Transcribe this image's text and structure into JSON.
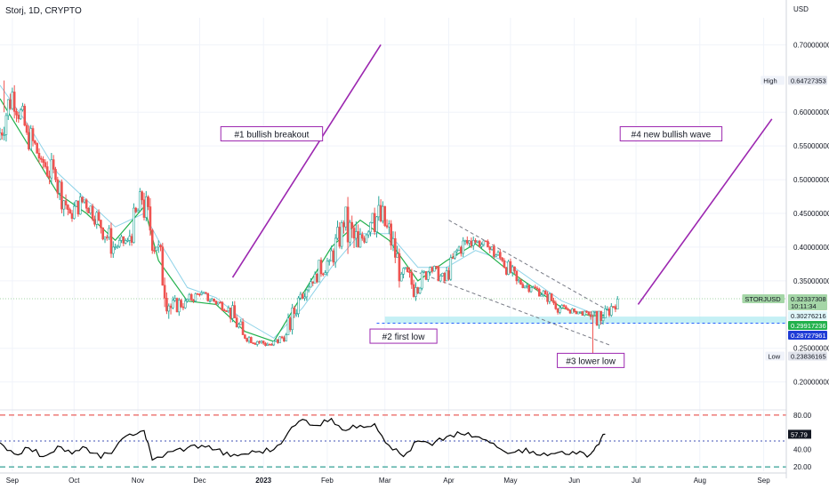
{
  "chart_data": {
    "type": "candlestick",
    "title": "Storj, 1D, CRYPTO",
    "currency": "USD",
    "symbol": "STORJUSD",
    "colors": {
      "up": "#26a69a",
      "up_fill": "#ffffff",
      "down": "#ef5350",
      "ema_fast": "#22b14c",
      "ema_slow": "#8fd3e8",
      "annotation": "#9c27b0",
      "support_zone": "#b2ebf2",
      "rsi_line": "#000000",
      "rsi_upper": "#e53935",
      "rsi_mid": "#3f51b5",
      "rsi_lower": "#00897b"
    },
    "x_axis": {
      "labels": [
        {
          "date": "2022-09-01",
          "label": "Sep"
        },
        {
          "date": "2022-10-01",
          "label": "Oct"
        },
        {
          "date": "2022-11-01",
          "label": "Nov"
        },
        {
          "date": "2022-12-01",
          "label": "Dec"
        },
        {
          "date": "2023-01-01",
          "label": "2023"
        },
        {
          "date": "2023-02-01",
          "label": "Feb"
        },
        {
          "date": "2023-03-01",
          "label": "Mar"
        },
        {
          "date": "2023-04-01",
          "label": "Apr"
        },
        {
          "date": "2023-05-01",
          "label": "May"
        },
        {
          "date": "2023-06-01",
          "label": "Jun"
        },
        {
          "date": "2023-07-01",
          "label": "Jul"
        },
        {
          "date": "2023-08-01",
          "label": "Aug"
        },
        {
          "date": "2023-09-01",
          "label": "Sep"
        }
      ],
      "range": [
        "2022-08-26",
        "2023-09-12"
      ]
    },
    "price_axis": {
      "range": [
        0.16,
        0.74
      ],
      "ticks": [
        {
          "value": 0.7,
          "label": "0.70000000"
        },
        {
          "value": 0.6,
          "label": "0.60000000"
        },
        {
          "value": 0.55,
          "label": "0.55000000"
        },
        {
          "value": 0.5,
          "label": "0.50000000"
        },
        {
          "value": 0.45,
          "label": "0.45000000"
        },
        {
          "value": 0.4,
          "label": "0.40000000"
        },
        {
          "value": 0.35,
          "label": "0.35000000"
        },
        {
          "value": 0.25,
          "label": "0.25000000"
        },
        {
          "value": 0.2,
          "label": "0.20000000"
        }
      ],
      "markers": [
        {
          "name": "High",
          "label": "High",
          "value": 0.64727353,
          "text": "0.64727353",
          "style": "plain"
        },
        {
          "name": "STORJUSD",
          "label": "STORJUSD",
          "value": 0.32337308,
          "text": "0.32337308",
          "subtext": "10:11:34",
          "style": "green-light"
        },
        {
          "name": "ema-slow",
          "label": "",
          "value": 0.30276216,
          "text": "0.30276216",
          "style": "light"
        },
        {
          "name": "ema-fast",
          "label": "",
          "value": 0.29917236,
          "text": "0.29917236",
          "style": "green"
        },
        {
          "name": "support",
          "label": "",
          "value": 0.28727961,
          "text": "0.28727961",
          "style": "blue"
        },
        {
          "name": "Low",
          "label": "Low",
          "value": 0.23836165,
          "text": "0.23836165",
          "style": "plain"
        }
      ]
    },
    "ohlc_weekly": [
      {
        "date": "2022-08-26",
        "open": 0.56,
        "high": 0.65,
        "low": 0.54,
        "close": 0.63
      },
      {
        "date": "2022-09-02",
        "open": 0.63,
        "high": 0.64,
        "low": 0.55,
        "close": 0.57
      },
      {
        "date": "2022-09-09",
        "open": 0.57,
        "high": 0.6,
        "low": 0.51,
        "close": 0.53
      },
      {
        "date": "2022-09-16",
        "open": 0.53,
        "high": 0.56,
        "low": 0.47,
        "close": 0.5
      },
      {
        "date": "2022-09-23",
        "open": 0.5,
        "high": 0.52,
        "low": 0.43,
        "close": 0.45
      },
      {
        "date": "2022-09-30",
        "open": 0.45,
        "high": 0.49,
        "low": 0.43,
        "close": 0.47
      },
      {
        "date": "2022-10-07",
        "open": 0.47,
        "high": 0.48,
        "low": 0.42,
        "close": 0.44
      },
      {
        "date": "2022-10-14",
        "open": 0.44,
        "high": 0.46,
        "low": 0.38,
        "close": 0.4
      },
      {
        "date": "2022-10-21",
        "open": 0.4,
        "high": 0.42,
        "low": 0.38,
        "close": 0.41
      },
      {
        "date": "2022-10-28",
        "open": 0.41,
        "high": 0.49,
        "low": 0.4,
        "close": 0.47
      },
      {
        "date": "2022-11-04",
        "open": 0.47,
        "high": 0.51,
        "low": 0.39,
        "close": 0.4
      },
      {
        "date": "2022-11-11",
        "open": 0.4,
        "high": 0.41,
        "low": 0.28,
        "close": 0.31
      },
      {
        "date": "2022-11-18",
        "open": 0.31,
        "high": 0.34,
        "low": 0.29,
        "close": 0.32
      },
      {
        "date": "2022-11-25",
        "open": 0.32,
        "high": 0.34,
        "low": 0.31,
        "close": 0.33
      },
      {
        "date": "2022-12-02",
        "open": 0.33,
        "high": 0.34,
        "low": 0.31,
        "close": 0.32
      },
      {
        "date": "2022-12-09",
        "open": 0.32,
        "high": 0.33,
        "low": 0.3,
        "close": 0.31
      },
      {
        "date": "2022-12-16",
        "open": 0.31,
        "high": 0.32,
        "low": 0.26,
        "close": 0.27
      },
      {
        "date": "2022-12-23",
        "open": 0.27,
        "high": 0.28,
        "low": 0.25,
        "close": 0.26
      },
      {
        "date": "2022-12-30",
        "open": 0.26,
        "high": 0.27,
        "low": 0.245,
        "close": 0.255
      },
      {
        "date": "2023-01-06",
        "open": 0.255,
        "high": 0.28,
        "low": 0.25,
        "close": 0.27
      },
      {
        "date": "2023-01-13",
        "open": 0.27,
        "high": 0.34,
        "low": 0.27,
        "close": 0.33
      },
      {
        "date": "2023-01-20",
        "open": 0.33,
        "high": 0.37,
        "low": 0.32,
        "close": 0.36
      },
      {
        "date": "2023-01-27",
        "open": 0.36,
        "high": 0.4,
        "low": 0.34,
        "close": 0.38
      },
      {
        "date": "2023-02-03",
        "open": 0.38,
        "high": 0.45,
        "low": 0.36,
        "close": 0.43
      },
      {
        "date": "2023-02-10",
        "open": 0.43,
        "high": 0.52,
        "low": 0.37,
        "close": 0.4
      },
      {
        "date": "2023-02-17",
        "open": 0.4,
        "high": 0.47,
        "low": 0.39,
        "close": 0.45
      },
      {
        "date": "2023-02-24",
        "open": 0.45,
        "high": 0.53,
        "low": 0.41,
        "close": 0.43
      },
      {
        "date": "2023-03-03",
        "open": 0.43,
        "high": 0.44,
        "low": 0.34,
        "close": 0.36
      },
      {
        "date": "2023-03-10",
        "open": 0.36,
        "high": 0.37,
        "low": 0.29,
        "close": 0.34
      },
      {
        "date": "2023-03-17",
        "open": 0.34,
        "high": 0.38,
        "low": 0.33,
        "close": 0.37
      },
      {
        "date": "2023-03-24",
        "open": 0.37,
        "high": 0.38,
        "low": 0.34,
        "close": 0.35
      },
      {
        "date": "2023-03-31",
        "open": 0.35,
        "high": 0.41,
        "low": 0.35,
        "close": 0.4
      },
      {
        "date": "2023-04-07",
        "open": 0.4,
        "high": 0.44,
        "low": 0.38,
        "close": 0.41
      },
      {
        "date": "2023-04-14",
        "open": 0.41,
        "high": 0.42,
        "low": 0.39,
        "close": 0.4
      },
      {
        "date": "2023-04-21",
        "open": 0.4,
        "high": 0.41,
        "low": 0.36,
        "close": 0.38
      },
      {
        "date": "2023-04-28",
        "open": 0.38,
        "high": 0.39,
        "low": 0.34,
        "close": 0.35
      },
      {
        "date": "2023-05-05",
        "open": 0.35,
        "high": 0.36,
        "low": 0.33,
        "close": 0.34
      },
      {
        "date": "2023-05-12",
        "open": 0.34,
        "high": 0.35,
        "low": 0.32,
        "close": 0.33
      },
      {
        "date": "2023-05-19",
        "open": 0.33,
        "high": 0.34,
        "low": 0.3,
        "close": 0.31
      },
      {
        "date": "2023-05-26",
        "open": 0.31,
        "high": 0.32,
        "low": 0.3,
        "close": 0.305
      },
      {
        "date": "2023-06-02",
        "open": 0.305,
        "high": 0.31,
        "low": 0.295,
        "close": 0.3
      },
      {
        "date": "2023-06-09",
        "open": 0.3,
        "high": 0.305,
        "low": 0.24,
        "close": 0.295
      },
      {
        "date": "2023-06-16",
        "open": 0.295,
        "high": 0.335,
        "low": 0.29,
        "close": 0.323
      }
    ],
    "ema_fast": {
      "name": "",
      "points": [
        {
          "date": "2022-08-26",
          "value": 0.62
        },
        {
          "date": "2022-09-09",
          "value": 0.55
        },
        {
          "date": "2022-09-23",
          "value": 0.48
        },
        {
          "date": "2022-10-07",
          "value": 0.45
        },
        {
          "date": "2022-10-21",
          "value": 0.41
        },
        {
          "date": "2022-11-04",
          "value": 0.46
        },
        {
          "date": "2022-11-11",
          "value": 0.38
        },
        {
          "date": "2022-11-25",
          "value": 0.32
        },
        {
          "date": "2022-12-09",
          "value": 0.315
        },
        {
          "date": "2022-12-23",
          "value": 0.275
        },
        {
          "date": "2023-01-06",
          "value": 0.26
        },
        {
          "date": "2023-01-20",
          "value": 0.33
        },
        {
          "date": "2023-02-03",
          "value": 0.4
        },
        {
          "date": "2023-02-17",
          "value": 0.44
        },
        {
          "date": "2023-03-03",
          "value": 0.41
        },
        {
          "date": "2023-03-17",
          "value": 0.35
        },
        {
          "date": "2023-03-31",
          "value": 0.38
        },
        {
          "date": "2023-04-14",
          "value": 0.405
        },
        {
          "date": "2023-04-28",
          "value": 0.37
        },
        {
          "date": "2023-05-12",
          "value": 0.34
        },
        {
          "date": "2023-05-26",
          "value": 0.31
        },
        {
          "date": "2023-06-09",
          "value": 0.298
        },
        {
          "date": "2023-06-16",
          "value": 0.299
        }
      ]
    },
    "ema_slow": {
      "name": "",
      "points": [
        {
          "date": "2022-08-26",
          "value": 0.64
        },
        {
          "date": "2022-09-09",
          "value": 0.58
        },
        {
          "date": "2022-09-23",
          "value": 0.51
        },
        {
          "date": "2022-10-07",
          "value": 0.47
        },
        {
          "date": "2022-10-21",
          "value": 0.43
        },
        {
          "date": "2022-11-04",
          "value": 0.45
        },
        {
          "date": "2022-11-11",
          "value": 0.41
        },
        {
          "date": "2022-11-25",
          "value": 0.34
        },
        {
          "date": "2022-12-09",
          "value": 0.325
        },
        {
          "date": "2022-12-23",
          "value": 0.29
        },
        {
          "date": "2023-01-06",
          "value": 0.265
        },
        {
          "date": "2023-01-20",
          "value": 0.31
        },
        {
          "date": "2023-02-03",
          "value": 0.37
        },
        {
          "date": "2023-02-17",
          "value": 0.42
        },
        {
          "date": "2023-03-03",
          "value": 0.42
        },
        {
          "date": "2023-03-17",
          "value": 0.37
        },
        {
          "date": "2023-03-31",
          "value": 0.37
        },
        {
          "date": "2023-04-14",
          "value": 0.395
        },
        {
          "date": "2023-04-28",
          "value": 0.38
        },
        {
          "date": "2023-05-12",
          "value": 0.35
        },
        {
          "date": "2023-05-26",
          "value": 0.32
        },
        {
          "date": "2023-06-09",
          "value": 0.303
        },
        {
          "date": "2023-06-16",
          "value": 0.3028
        }
      ]
    },
    "support_line": {
      "value": 0.28727961,
      "start": "2023-03-01",
      "end": "2023-06-16"
    },
    "channel_lines": [
      {
        "points": [
          {
            "date": "2023-04-01",
            "value": 0.44
          },
          {
            "date": "2023-06-18",
            "value": 0.305
          }
        ]
      },
      {
        "points": [
          {
            "date": "2023-03-15",
            "value": 0.365
          },
          {
            "date": "2023-06-18",
            "value": 0.255
          }
        ]
      }
    ],
    "arrows": [
      {
        "points": [
          {
            "date": "2022-12-17",
            "value": 0.355
          },
          {
            "date": "2023-02-27",
            "value": 0.7
          }
        ]
      },
      {
        "points": [
          {
            "date": "2023-07-02",
            "value": 0.315
          },
          {
            "date": "2023-09-05",
            "value": 0.59
          }
        ]
      }
    ],
    "annotations": [
      {
        "text": "#1 bullish breakout",
        "date": "2023-01-05",
        "value": 0.568
      },
      {
        "text": "#2 first low",
        "date": "2023-03-10",
        "value": 0.268
      },
      {
        "text": "#3 lower low",
        "date": "2023-06-09",
        "value": 0.232
      },
      {
        "text": "#4 new bullish wave",
        "date": "2023-07-18",
        "value": 0.568
      }
    ],
    "rsi": {
      "range": [
        15,
        85
      ],
      "levels": [
        {
          "value": 80,
          "label": "80.00",
          "color": "#e53935"
        },
        {
          "value": 20,
          "label": "20.00",
          "color": "#00897b"
        }
      ],
      "midline": 50,
      "ticks": [
        {
          "value": 40,
          "label": "40.00"
        }
      ],
      "current": {
        "value": 57.79,
        "label": "57.79"
      },
      "points": [
        {
          "date": "2022-08-26",
          "value": 48
        },
        {
          "date": "2022-09-02",
          "value": 35
        },
        {
          "date": "2022-09-09",
          "value": 42
        },
        {
          "date": "2022-09-16",
          "value": 32
        },
        {
          "date": "2022-09-23",
          "value": 44
        },
        {
          "date": "2022-09-30",
          "value": 35
        },
        {
          "date": "2022-10-07",
          "value": 42
        },
        {
          "date": "2022-10-14",
          "value": 30
        },
        {
          "date": "2022-10-21",
          "value": 42
        },
        {
          "date": "2022-10-28",
          "value": 58
        },
        {
          "date": "2022-11-04",
          "value": 62
        },
        {
          "date": "2022-11-08",
          "value": 28
        },
        {
          "date": "2022-11-18",
          "value": 38
        },
        {
          "date": "2022-11-25",
          "value": 42
        },
        {
          "date": "2022-12-02",
          "value": 45
        },
        {
          "date": "2022-12-09",
          "value": 40
        },
        {
          "date": "2022-12-16",
          "value": 32
        },
        {
          "date": "2022-12-23",
          "value": 35
        },
        {
          "date": "2022-12-30",
          "value": 38
        },
        {
          "date": "2023-01-06",
          "value": 40
        },
        {
          "date": "2023-01-13",
          "value": 60
        },
        {
          "date": "2023-01-20",
          "value": 75
        },
        {
          "date": "2023-01-27",
          "value": 68
        },
        {
          "date": "2023-02-03",
          "value": 76
        },
        {
          "date": "2023-02-10",
          "value": 62
        },
        {
          "date": "2023-02-17",
          "value": 68
        },
        {
          "date": "2023-02-24",
          "value": 70
        },
        {
          "date": "2023-03-03",
          "value": 45
        },
        {
          "date": "2023-03-10",
          "value": 32
        },
        {
          "date": "2023-03-17",
          "value": 50
        },
        {
          "date": "2023-03-24",
          "value": 45
        },
        {
          "date": "2023-03-31",
          "value": 55
        },
        {
          "date": "2023-04-07",
          "value": 58
        },
        {
          "date": "2023-04-14",
          "value": 55
        },
        {
          "date": "2023-04-21",
          "value": 48
        },
        {
          "date": "2023-04-28",
          "value": 38
        },
        {
          "date": "2023-05-05",
          "value": 40
        },
        {
          "date": "2023-05-12",
          "value": 38
        },
        {
          "date": "2023-05-19",
          "value": 33
        },
        {
          "date": "2023-05-26",
          "value": 38
        },
        {
          "date": "2023-06-02",
          "value": 35
        },
        {
          "date": "2023-06-09",
          "value": 35
        },
        {
          "date": "2023-06-12",
          "value": 45
        },
        {
          "date": "2023-06-16",
          "value": 57.79
        }
      ]
    }
  }
}
